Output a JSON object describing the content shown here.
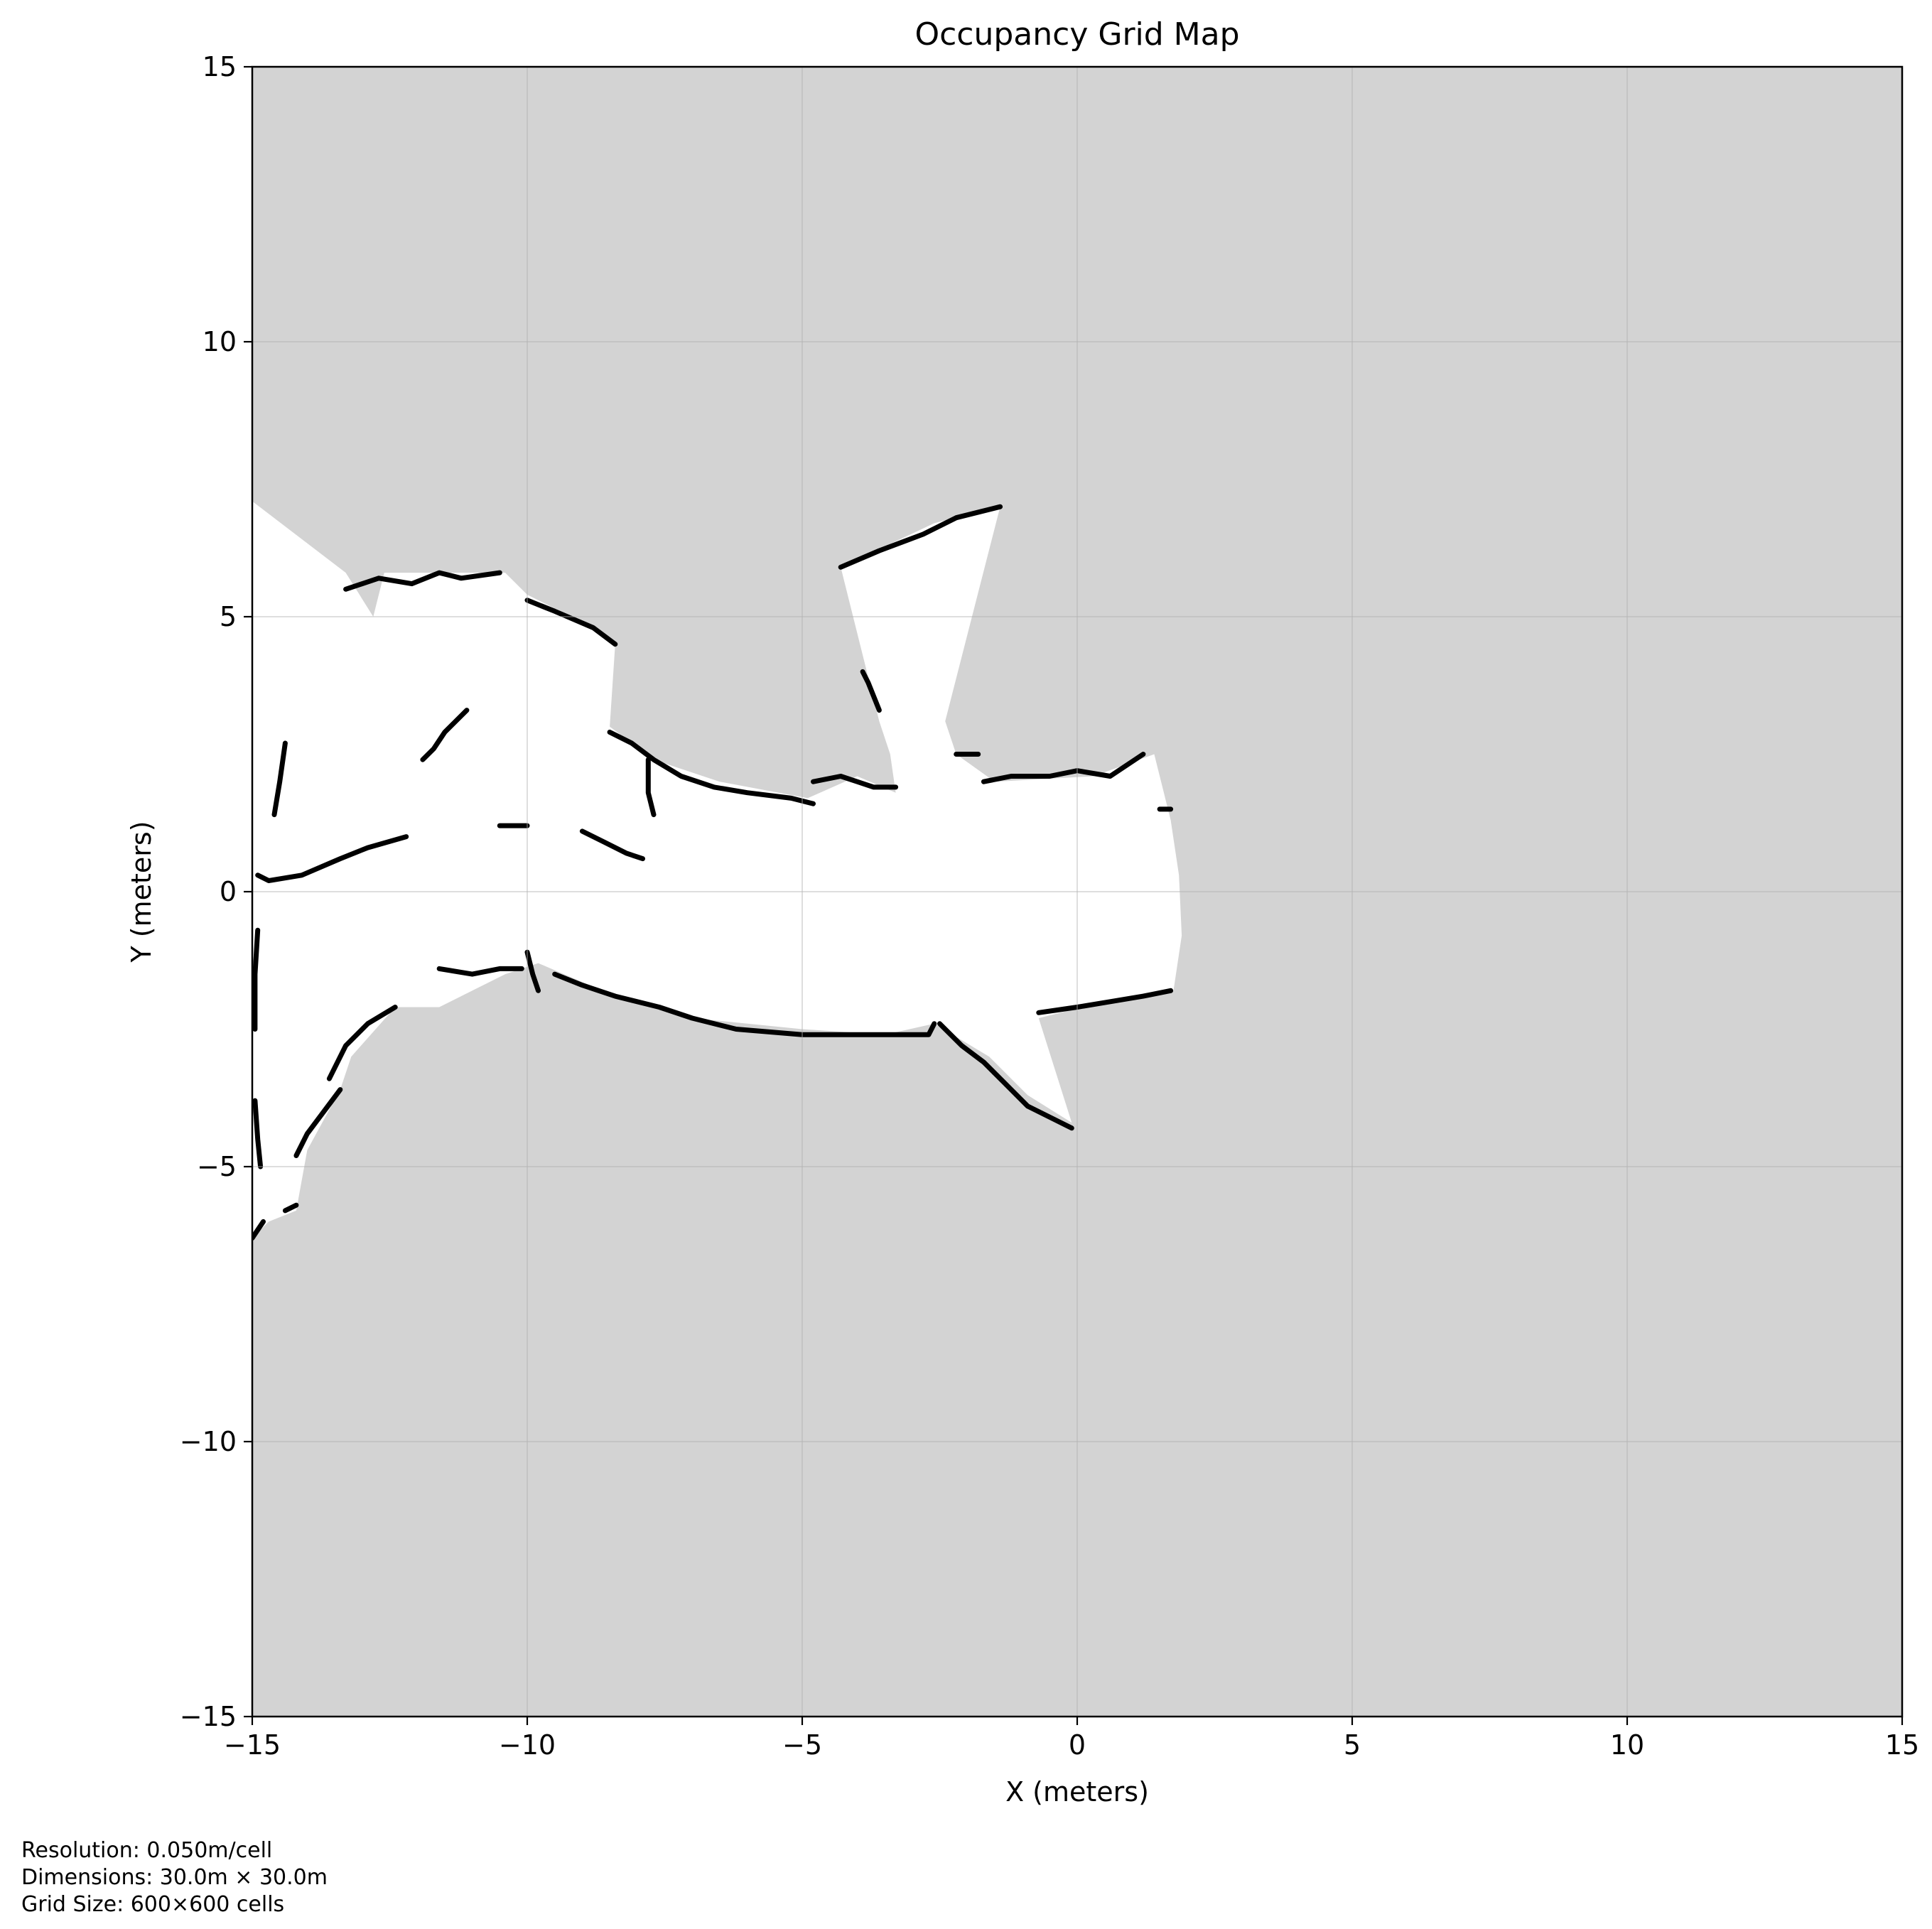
{
  "chart_data": {
    "type": "heatmap",
    "title": "Occupancy Grid Map",
    "xlabel": "X (meters)",
    "ylabel": "Y (meters)",
    "xlim": [
      -15,
      15
    ],
    "ylim": [
      -15,
      15
    ],
    "xticks": [
      -15,
      -10,
      -5,
      0,
      5,
      10,
      15
    ],
    "yticks": [
      -15,
      -10,
      -5,
      0,
      5,
      10,
      15
    ],
    "xtick_labels": [
      "−15",
      "−10",
      "−5",
      "0",
      "5",
      "10",
      "15"
    ],
    "ytick_labels": [
      "−15",
      "−10",
      "−5",
      "0",
      "5",
      "10",
      "15"
    ],
    "grid": true,
    "resolution_m_per_cell": 0.05,
    "grid_cells": [
      600,
      600
    ],
    "colors": {
      "unknown": "#d3d3d3",
      "free": "#ffffff",
      "occupied": "#000000"
    },
    "free_space": [
      [
        -15.0,
        7.1
      ],
      [
        -13.3,
        5.8
      ],
      [
        -12.8,
        5.0
      ],
      [
        -12.6,
        5.8
      ],
      [
        -10.4,
        5.8
      ],
      [
        -10.0,
        5.4
      ],
      [
        -9.0,
        4.9
      ],
      [
        -8.4,
        4.5
      ],
      [
        -8.5,
        3.0
      ],
      [
        -7.7,
        2.4
      ],
      [
        -6.5,
        2.0
      ],
      [
        -4.9,
        1.7
      ],
      [
        -4.0,
        2.1
      ],
      [
        -3.3,
        1.8
      ],
      [
        -3.4,
        2.5
      ],
      [
        -3.6,
        3.1
      ],
      [
        -4.3,
        5.9
      ],
      [
        -2.6,
        6.7
      ],
      [
        -1.4,
        7.0
      ],
      [
        -2.4,
        3.1
      ],
      [
        -2.2,
        2.5
      ],
      [
        -1.5,
        2.0
      ],
      [
        0.3,
        2.1
      ],
      [
        1.4,
        2.5
      ],
      [
        1.7,
        1.3
      ],
      [
        1.85,
        0.3
      ],
      [
        1.9,
        -0.8
      ],
      [
        1.75,
        -1.8
      ],
      [
        0.5,
        -2.0
      ],
      [
        -0.7,
        -2.3
      ],
      [
        -0.1,
        -4.2
      ],
      [
        -0.9,
        -3.7
      ],
      [
        -1.6,
        -3.0
      ],
      [
        -2.6,
        -2.4
      ],
      [
        -3.5,
        -2.6
      ],
      [
        -5.0,
        -2.5
      ],
      [
        -7.0,
        -2.3
      ],
      [
        -8.4,
        -1.9
      ],
      [
        -9.8,
        -1.3
      ],
      [
        -10.4,
        -1.5
      ],
      [
        -11.6,
        -2.1
      ],
      [
        -12.4,
        -2.1
      ],
      [
        -13.2,
        -3.0
      ],
      [
        -13.4,
        -3.6
      ],
      [
        -14.0,
        -4.7
      ],
      [
        -14.2,
        -5.8
      ],
      [
        -14.7,
        -6.0
      ],
      [
        -15.0,
        -6.3
      ]
    ],
    "occupied_segments": [
      [
        [
          -14.9,
          0.3
        ],
        [
          -14.7,
          0.2
        ],
        [
          -14.1,
          0.3
        ],
        [
          -13.4,
          0.6
        ],
        [
          -12.9,
          0.8
        ],
        [
          -12.2,
          1.0
        ]
      ],
      [
        [
          -14.9,
          -0.7
        ],
        [
          -14.95,
          -1.5
        ],
        [
          -14.95,
          -2.5
        ]
      ],
      [
        [
          -14.4,
          2.7
        ],
        [
          -14.5,
          2.0
        ],
        [
          -14.6,
          1.4
        ]
      ],
      [
        [
          -13.3,
          5.5
        ],
        [
          -12.7,
          5.7
        ],
        [
          -12.1,
          5.6
        ],
        [
          -11.6,
          5.8
        ],
        [
          -11.2,
          5.7
        ],
        [
          -10.5,
          5.8
        ]
      ],
      [
        [
          -10.0,
          5.3
        ],
        [
          -9.5,
          5.1
        ],
        [
          -8.8,
          4.8
        ],
        [
          -8.4,
          4.5
        ]
      ],
      [
        [
          -11.1,
          3.3
        ],
        [
          -11.5,
          2.9
        ],
        [
          -11.7,
          2.6
        ],
        [
          -11.9,
          2.4
        ]
      ],
      [
        [
          -8.5,
          2.9
        ],
        [
          -8.1,
          2.7
        ],
        [
          -7.7,
          2.4
        ],
        [
          -7.2,
          2.1
        ],
        [
          -6.6,
          1.9
        ],
        [
          -6.0,
          1.8
        ],
        [
          -5.2,
          1.7
        ],
        [
          -4.8,
          1.6
        ]
      ],
      [
        [
          -7.8,
          2.4
        ],
        [
          -7.8,
          1.8
        ],
        [
          -7.7,
          1.4
        ]
      ],
      [
        [
          -4.8,
          2.0
        ],
        [
          -4.3,
          2.1
        ],
        [
          -4.0,
          2.0
        ],
        [
          -3.7,
          1.9
        ],
        [
          -3.3,
          1.9
        ]
      ],
      [
        [
          -4.3,
          5.9
        ],
        [
          -3.6,
          6.2
        ],
        [
          -2.8,
          6.5
        ],
        [
          -2.2,
          6.8
        ],
        [
          -1.4,
          7.0
        ]
      ],
      [
        [
          -3.6,
          3.3
        ],
        [
          -3.8,
          3.8
        ],
        [
          -3.9,
          4.0
        ]
      ],
      [
        [
          -2.2,
          2.5
        ],
        [
          -1.8,
          2.5
        ]
      ],
      [
        [
          -1.7,
          2.0
        ],
        [
          -1.2,
          2.1
        ],
        [
          -0.5,
          2.1
        ],
        [
          0.0,
          2.2
        ],
        [
          0.6,
          2.1
        ],
        [
          1.2,
          2.5
        ]
      ],
      [
        [
          1.5,
          1.5
        ],
        [
          1.7,
          1.5
        ]
      ],
      [
        [
          -10.0,
          1.2
        ],
        [
          -10.5,
          1.2
        ]
      ],
      [
        [
          -9.0,
          1.1
        ],
        [
          -8.6,
          0.9
        ],
        [
          -8.2,
          0.7
        ],
        [
          -7.9,
          0.6
        ]
      ],
      [
        [
          -11.6,
          -1.4
        ],
        [
          -11.0,
          -1.5
        ],
        [
          -10.5,
          -1.4
        ],
        [
          -10.1,
          -1.4
        ]
      ],
      [
        [
          -10.0,
          -1.1
        ],
        [
          -9.9,
          -1.5
        ],
        [
          -9.8,
          -1.8
        ]
      ],
      [
        [
          -9.5,
          -1.5
        ],
        [
          -9.0,
          -1.7
        ],
        [
          -8.4,
          -1.9
        ],
        [
          -7.6,
          -2.1
        ],
        [
          -7.0,
          -2.3
        ],
        [
          -6.2,
          -2.5
        ],
        [
          -5.0,
          -2.6
        ],
        [
          -4.0,
          -2.6
        ],
        [
          -3.4,
          -2.6
        ],
        [
          -2.7,
          -2.6
        ],
        [
          -2.6,
          -2.4
        ]
      ],
      [
        [
          -2.5,
          -2.4
        ],
        [
          -2.1,
          -2.8
        ],
        [
          -1.7,
          -3.1
        ],
        [
          -1.3,
          -3.5
        ],
        [
          -0.9,
          -3.9
        ],
        [
          -0.1,
          -4.3
        ]
      ],
      [
        [
          -0.7,
          -2.2
        ],
        [
          0.0,
          -2.1
        ],
        [
          0.6,
          -2.0
        ],
        [
          1.2,
          -1.9
        ],
        [
          1.7,
          -1.8
        ]
      ],
      [
        [
          -12.4,
          -2.1
        ],
        [
          -12.9,
          -2.4
        ],
        [
          -13.3,
          -2.8
        ],
        [
          -13.6,
          -3.4
        ]
      ],
      [
        [
          -13.4,
          -3.6
        ],
        [
          -13.7,
          -4.0
        ],
        [
          -14.0,
          -4.4
        ],
        [
          -14.2,
          -4.8
        ]
      ],
      [
        [
          -14.2,
          -5.7
        ],
        [
          -14.4,
          -5.8
        ]
      ],
      [
        [
          -14.8,
          -6.0
        ],
        [
          -15.0,
          -6.3
        ]
      ],
      [
        [
          -14.95,
          -3.8
        ],
        [
          -14.9,
          -4.5
        ],
        [
          -14.85,
          -5.0
        ]
      ]
    ],
    "footer": {
      "resolution": "Resolution: 0.050m/cell",
      "dimensions": "Dimensions: 30.0m × 30.0m",
      "grid_size": "Grid Size: 600×600 cells"
    }
  }
}
